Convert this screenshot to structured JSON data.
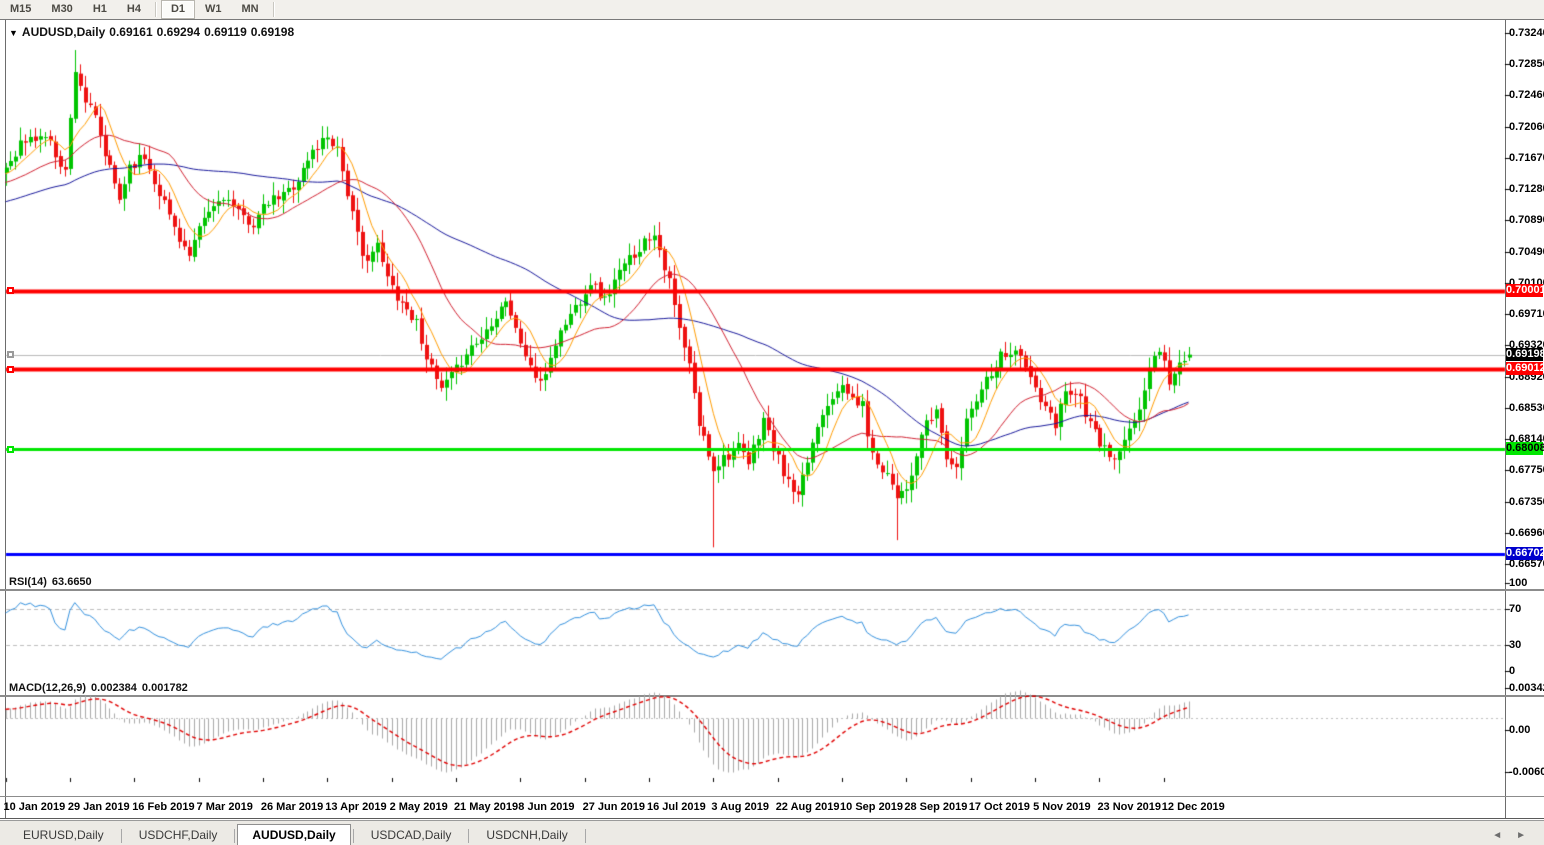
{
  "toolbar": {
    "timeframes": [
      {
        "label": "M15",
        "active": false
      },
      {
        "label": "M30",
        "active": false
      },
      {
        "label": "H1",
        "active": false
      },
      {
        "label": "H4",
        "active": false
      },
      {
        "label": "D1",
        "active": true
      },
      {
        "label": "W1",
        "active": false
      },
      {
        "label": "MN",
        "active": false
      }
    ]
  },
  "header": {
    "dropdown_icon": "▼",
    "symbol": "AUDUSD,Daily",
    "open": "0.69161",
    "high": "0.69294",
    "low": "0.69119",
    "close": "0.69198"
  },
  "price_axis": {
    "ticks": [
      "0.73240",
      "0.72850",
      "0.72460",
      "0.72060",
      "0.71670",
      "0.71280",
      "0.70890",
      "0.70490",
      "0.70100",
      "0.69710",
      "0.69320",
      "0.68920",
      "0.68530",
      "0.68140",
      "0.67750",
      "0.67350",
      "0.66960",
      "0.66570"
    ]
  },
  "date_axis": {
    "ticks": [
      "10 Jan 2019",
      "29 Jan 2019",
      "16 Feb 2019",
      "7 Mar 2019",
      "26 Mar 2019",
      "13 Apr 2019",
      "2 May 2019",
      "21 May 2019",
      "8 Jun 2019",
      "27 Jun 2019",
      "16 Jul 2019",
      "3 Aug 2019",
      "22 Aug 2019",
      "10 Sep 2019",
      "28 Sep 2019",
      "17 Oct 2019",
      "5 Nov 2019",
      "23 Nov 2019",
      "12 Dec 2019"
    ]
  },
  "levels": [
    {
      "name": "resistance-line-0.70001",
      "price": 0.70001,
      "label": "0.70001",
      "color": "#ff0000",
      "thickness": 4,
      "label_bg": "#ff0000",
      "label_fg": "#ffffff",
      "handle": true
    },
    {
      "name": "current-price-line",
      "price": 0.69198,
      "label": "0.69198",
      "color": "#b9b9b9",
      "thickness": 1,
      "label_bg": "#000000",
      "label_fg": "#ffffff",
      "handle": true
    },
    {
      "name": "resistance-line-0.69012",
      "price": 0.69012,
      "label": "0.69012",
      "color": "#ff0000",
      "thickness": 4,
      "label_bg": "#ff0000",
      "label_fg": "#ffffff",
      "handle": true
    },
    {
      "name": "support-line-0.68008",
      "price": 0.68008,
      "label": "0.68008",
      "color": "#00e600",
      "thickness": 3,
      "label_bg": "#00e600",
      "label_fg": "#000000",
      "handle": true
    },
    {
      "name": "support-line-0.66702",
      "price": 0.66702,
      "label": "0.66702",
      "color": "#0000ff",
      "thickness": 3,
      "label_bg": "#0000cc",
      "label_fg": "#ffffff",
      "handle": false
    }
  ],
  "rsi": {
    "title": "RSI(14)",
    "value": "63.6650",
    "scale": [
      "100",
      "70",
      "30",
      "0"
    ],
    "levels": [
      70,
      30
    ],
    "color": "#3390dd"
  },
  "macd": {
    "title": "MACD(12,26,9)",
    "macd_value": "0.002384",
    "signal_value": "0.001782",
    "scale": [
      "0.003421",
      "0.00",
      "-0.006069"
    ],
    "hist_color": "#a9a9a9",
    "signal_color": "#e00000"
  },
  "tabs": {
    "items": [
      {
        "label": "EURUSD,Daily",
        "active": false
      },
      {
        "label": "USDCHF,Daily",
        "active": false
      },
      {
        "label": "AUDUSD,Daily",
        "active": true
      },
      {
        "label": "USDCAD,Daily",
        "active": false
      },
      {
        "label": "USDCNH,Daily",
        "active": false
      }
    ],
    "prev_icon": "◄",
    "next_icon": "►"
  },
  "colors": {
    "bull": "#00c400",
    "bear": "#ee1111",
    "ma_fast": "#ff9c00",
    "ma_mid": "#d02030",
    "ma_slow": "#16169a",
    "grid_dash": "#bdbdbd",
    "axis_frame": "#6d6d6d"
  },
  "chart_data": {
    "type": "candlestick",
    "symbol": "AUDUSD",
    "timeframe": "Daily",
    "title": "AUDUSD,Daily 0.69161 0.69294 0.69119 0.69198",
    "visible_range": {
      "first_label": "10 Jan 2019",
      "last_label": "12 Dec 2019"
    },
    "y_axis": {
      "top_price": 0.73397,
      "bottom_price": 0.66508,
      "tick_step": 0.0039
    },
    "candles": {
      "count": 240,
      "anchors_close": [
        [
          0,
          0.7155
        ],
        [
          3,
          0.7185
        ],
        [
          8,
          0.7195
        ],
        [
          12,
          0.715
        ],
        [
          14,
          0.728
        ],
        [
          16,
          0.7238
        ],
        [
          18,
          0.7215
        ],
        [
          20,
          0.717
        ],
        [
          23,
          0.7115
        ],
        [
          25,
          0.7158
        ],
        [
          28,
          0.7168
        ],
        [
          31,
          0.7125
        ],
        [
          34,
          0.708
        ],
        [
          37,
          0.7042
        ],
        [
          40,
          0.709
        ],
        [
          44,
          0.712
        ],
        [
          47,
          0.7095
        ],
        [
          50,
          0.7085
        ],
        [
          53,
          0.711
        ],
        [
          56,
          0.712
        ],
        [
          59,
          0.714
        ],
        [
          62,
          0.7175
        ],
        [
          65,
          0.7195
        ],
        [
          67,
          0.718
        ],
        [
          70,
          0.7095
        ],
        [
          72,
          0.704
        ],
        [
          75,
          0.7055
        ],
        [
          77,
          0.7015
        ],
        [
          80,
          0.6985
        ],
        [
          83,
          0.696
        ],
        [
          86,
          0.69
        ],
        [
          88,
          0.6875
        ],
        [
          91,
          0.69
        ],
        [
          93,
          0.6925
        ],
        [
          96,
          0.694
        ],
        [
          98,
          0.6962
        ],
        [
          101,
          0.699
        ],
        [
          103,
          0.695
        ],
        [
          106,
          0.6905
        ],
        [
          108,
          0.688
        ],
        [
          111,
          0.6935
        ],
        [
          113,
          0.696
        ],
        [
          116,
          0.699
        ],
        [
          118,
          0.7012
        ],
        [
          121,
          0.6988
        ],
        [
          123,
          0.7012
        ],
        [
          126,
          0.704
        ],
        [
          129,
          0.7062
        ],
        [
          131,
          0.7075
        ],
        [
          134,
          0.701
        ],
        [
          136,
          0.695
        ],
        [
          138,
          0.6905
        ],
        [
          140,
          0.6832
        ],
        [
          143,
          0.6778
        ],
        [
          145,
          0.6792
        ],
        [
          148,
          0.6802
        ],
        [
          150,
          0.6782
        ],
        [
          153,
          0.684
        ],
        [
          155,
          0.6802
        ],
        [
          158,
          0.6758
        ],
        [
          160,
          0.6738
        ],
        [
          163,
          0.681
        ],
        [
          165,
          0.685
        ],
        [
          168,
          0.688
        ],
        [
          170,
          0.687
        ],
        [
          173,
          0.6855
        ],
        [
          175,
          0.6792
        ],
        [
          178,
          0.6772
        ],
        [
          180,
          0.6745
        ],
        [
          183,
          0.6762
        ],
        [
          185,
          0.682
        ],
        [
          188,
          0.685
        ],
        [
          190,
          0.6792
        ],
        [
          192,
          0.6772
        ],
        [
          194,
          0.684
        ],
        [
          197,
          0.688
        ],
        [
          199,
          0.69
        ],
        [
          201,
          0.692
        ],
        [
          204,
          0.6926
        ],
        [
          207,
          0.689
        ],
        [
          209,
          0.6862
        ],
        [
          212,
          0.683
        ],
        [
          214,
          0.688
        ],
        [
          217,
          0.6865
        ],
        [
          219,
          0.683
        ],
        [
          222,
          0.68
        ],
        [
          224,
          0.6786
        ],
        [
          227,
          0.682
        ],
        [
          229,
          0.6855
        ],
        [
          231,
          0.69
        ],
        [
          233,
          0.693
        ],
        [
          235,
          0.6888
        ],
        [
          237,
          0.6906
        ],
        [
          239,
          0.69198
        ]
      ],
      "extremes": [
        {
          "i": 14,
          "high": 0.7302
        },
        {
          "i": 15,
          "high": 0.7284
        },
        {
          "i": 65,
          "high": 0.7206
        },
        {
          "i": 131,
          "high": 0.7082
        },
        {
          "i": 143,
          "low": 0.6678
        },
        {
          "i": 180,
          "low": 0.6687
        }
      ],
      "last_candle": {
        "open": 0.69161,
        "high": 0.69294,
        "low": 0.69119,
        "close": 0.69198
      }
    },
    "horizontal_levels": [
      0.70001,
      0.69198,
      0.69012,
      0.68008,
      0.66702
    ],
    "moving_averages": [
      {
        "name": "fast",
        "period": 7,
        "color": "#ff9c00"
      },
      {
        "name": "medium",
        "period": 21,
        "color": "#d02030"
      },
      {
        "name": "slow",
        "period": 55,
        "color": "#16169a"
      }
    ],
    "indicators": [
      {
        "name": "RSI",
        "params": [
          14
        ],
        "current": 63.665,
        "range": [
          0,
          100
        ],
        "marked_levels": [
          70,
          30
        ]
      },
      {
        "name": "MACD",
        "params": [
          12,
          26,
          9
        ],
        "current_macd": 0.002384,
        "current_signal": 0.001782,
        "scale_max": 0.003421,
        "scale_min": -0.006069
      }
    ]
  }
}
